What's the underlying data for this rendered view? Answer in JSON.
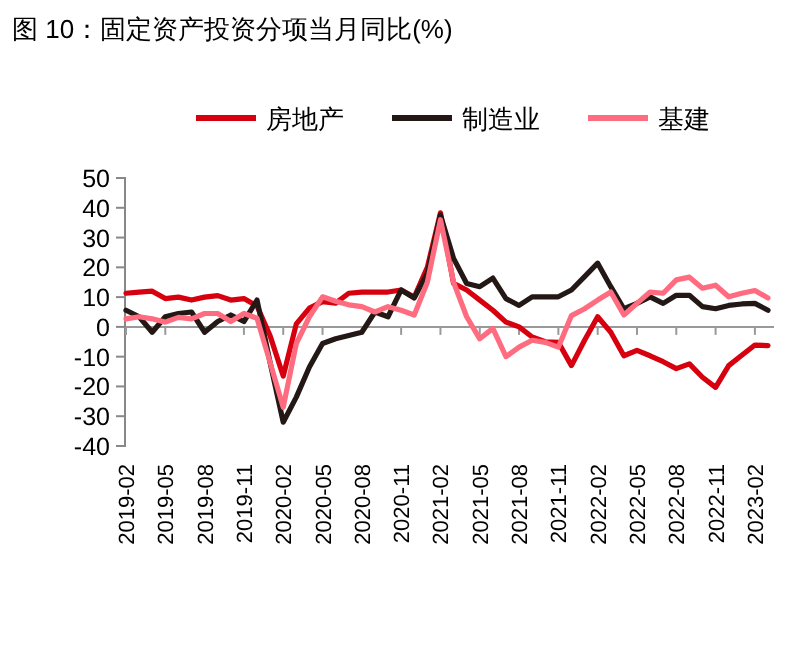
{
  "chart_data": {
    "type": "line",
    "title": "图 10：固定资产投资分项当月同比(%)",
    "categories": [
      "2019-02",
      null,
      null,
      "2019-05",
      null,
      null,
      "2019-08",
      null,
      null,
      "2019-11",
      null,
      null,
      "2020-02",
      null,
      null,
      "2020-05",
      null,
      null,
      "2020-08",
      null,
      null,
      "2020-11",
      null,
      null,
      "2021-02",
      null,
      null,
      "2021-05",
      null,
      null,
      "2021-08",
      null,
      null,
      "2021-11",
      null,
      null,
      "2022-02",
      null,
      null,
      "2022-05",
      null,
      null,
      "2022-08",
      null,
      null,
      "2022-11",
      null,
      null,
      "2023-02",
      null
    ],
    "series": [
      {
        "name": "房地产",
        "color": "#d7000f",
        "values": [
          11.3,
          11.7,
          12,
          9.5,
          10,
          9,
          10,
          10.5,
          9,
          9.5,
          7,
          -3,
          -16.5,
          1,
          6.3,
          8.5,
          8,
          11.3,
          11.7,
          11.7,
          11.7,
          12.4,
          10,
          20,
          38.3,
          14.6,
          12.4,
          9,
          5.6,
          1.6,
          0,
          -3.4,
          -5,
          -5.2,
          -13,
          -4.5,
          3.4,
          -1.8,
          -9.7,
          -7.9,
          -9.7,
          -11.7,
          -14,
          -12.4,
          -16.9,
          -20.3,
          -13,
          -9.5,
          -6.1,
          -6.3
        ]
      },
      {
        "name": "制造业",
        "color": "#231815",
        "values": [
          5.6,
          3.4,
          -1.8,
          3.4,
          4.5,
          5,
          -1.8,
          1.8,
          4,
          1.8,
          9,
          -12,
          -32,
          -23.6,
          -13.5,
          -5.6,
          -4,
          -2.9,
          -1.8,
          5,
          3.4,
          12.4,
          9.7,
          18,
          37.6,
          23,
          14.6,
          13.5,
          16.4,
          9.5,
          7.2,
          10.1,
          10.1,
          10.1,
          12.4,
          16.9,
          21.4,
          13.5,
          6.1,
          7.9,
          10.1,
          7.9,
          10.6,
          10.6,
          6.8,
          6.1,
          7.2,
          7.7,
          7.9,
          5.6
        ]
      },
      {
        "name": "基建",
        "color": "#ff6b7f",
        "values": [
          2.7,
          3.4,
          2.7,
          1.6,
          3.2,
          2.7,
          4.5,
          4.5,
          1.8,
          4.5,
          2.9,
          -12,
          -27,
          -5.6,
          3.4,
          10.1,
          8.6,
          7.4,
          6.8,
          5,
          6.8,
          5.6,
          4,
          15,
          36,
          15,
          3.4,
          -4,
          -0.5,
          -10,
          -6.8,
          -4.5,
          -5.2,
          -6.8,
          3.8,
          6.1,
          9,
          11.7,
          4,
          7.9,
          11.7,
          11.3,
          15.8,
          16.7,
          13,
          14,
          10.1,
          11.3,
          12.2,
          9.7
        ]
      }
    ],
    "ylim": [
      -40,
      50
    ],
    "yticks": [
      -40,
      -30,
      -20,
      -10,
      0,
      10,
      20,
      30,
      40,
      50
    ],
    "legend": "top",
    "marker": "none",
    "line_style": "solid"
  }
}
